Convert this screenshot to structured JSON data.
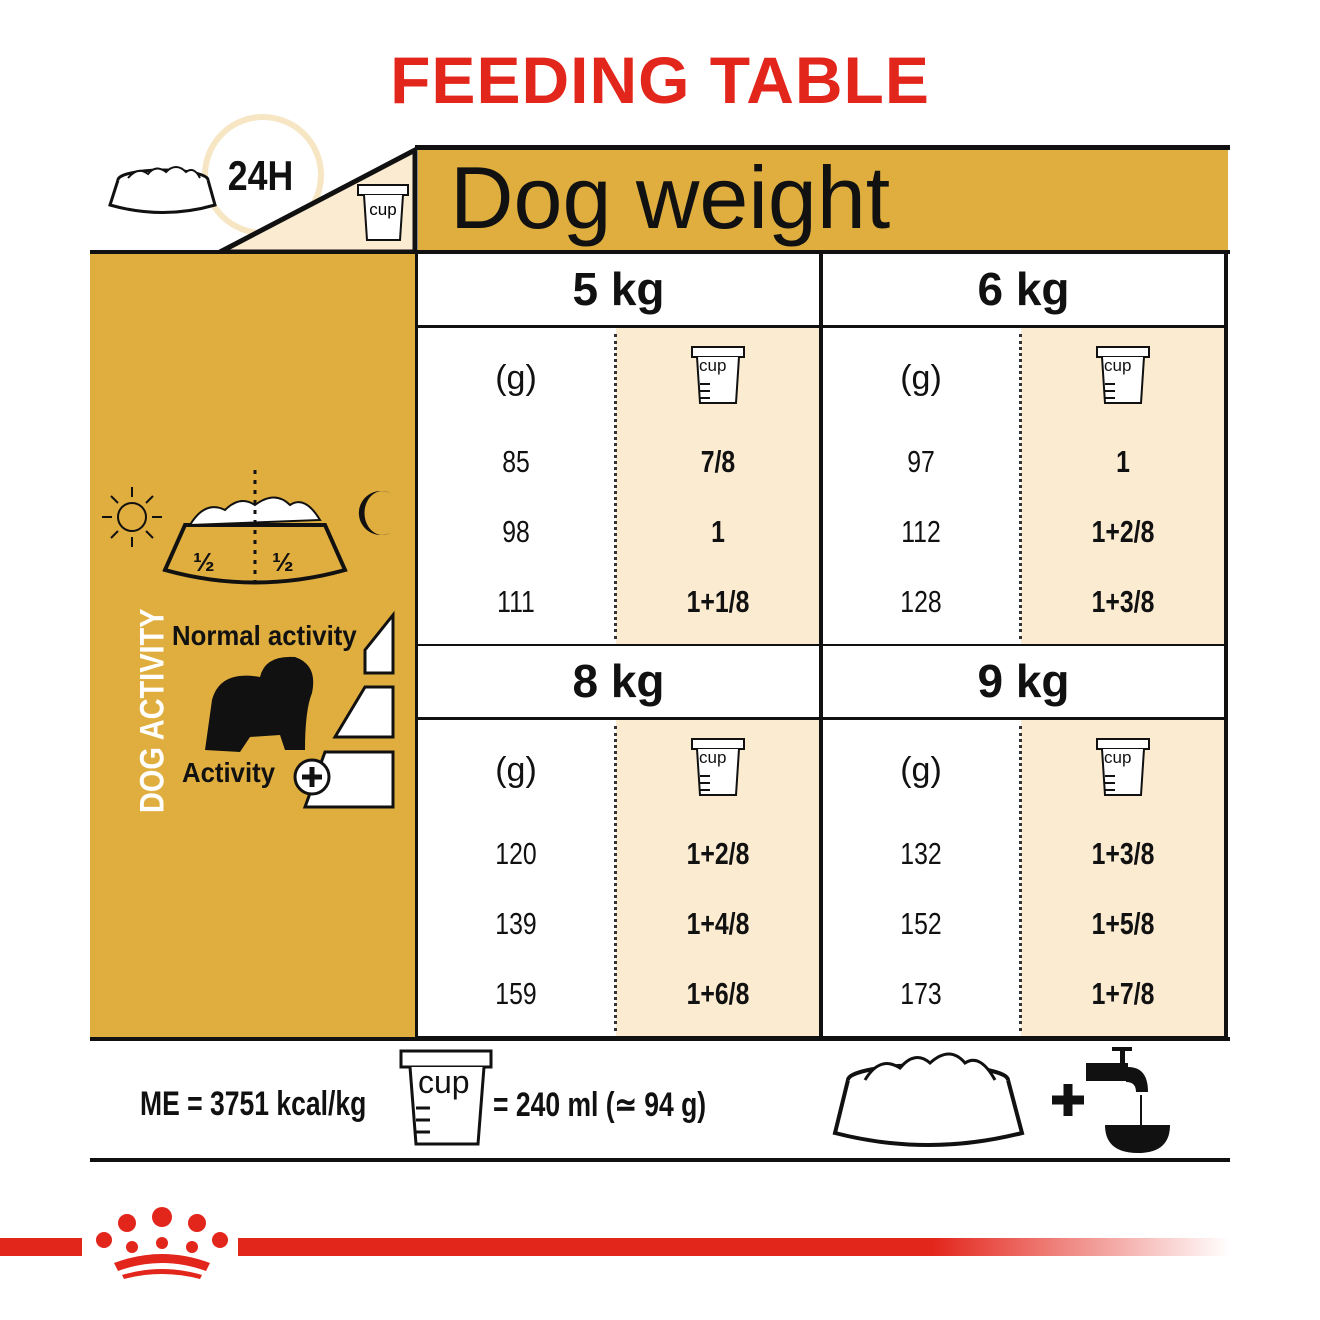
{
  "title": "FEEDING TABLE",
  "header": {
    "period": "24H",
    "dog_weight": "Dog weight",
    "cup_label": "cup"
  },
  "left_panel": {
    "vertical_label": "DOG ACTIVITY",
    "half_left": "½",
    "half_right": "½",
    "normal_activity": "Normal activity",
    "activity_plus": "Activity"
  },
  "columns": {
    "grams_label": "(g)",
    "cup_label": "cup"
  },
  "table": [
    {
      "weight": "5 kg",
      "rows": [
        [
          "85",
          "7/8"
        ],
        [
          "98",
          "1"
        ],
        [
          "111",
          "1+1/8"
        ]
      ]
    },
    {
      "weight": "6 kg",
      "rows": [
        [
          "97",
          "1"
        ],
        [
          "112",
          "1+2/8"
        ],
        [
          "128",
          "1+3/8"
        ]
      ]
    },
    {
      "weight": "8 kg",
      "rows": [
        [
          "120",
          "1+2/8"
        ],
        [
          "139",
          "1+4/8"
        ],
        [
          "159",
          "1+6/8"
        ]
      ]
    },
    {
      "weight": "9 kg",
      "rows": [
        [
          "132",
          "1+3/8"
        ],
        [
          "152",
          "1+5/8"
        ],
        [
          "173",
          "1+7/8"
        ]
      ]
    }
  ],
  "footer": {
    "energy": "ME = 3751 kcal/kg",
    "cup_label": "cup",
    "cup_equiv": "= 240 ml (≃ 94 g)"
  },
  "colors": {
    "accent_red": "#e3261c",
    "gold": "#e0ae3e",
    "cream": "#fbebd0"
  },
  "icons": [
    "food-bowl-icon",
    "clock-icon",
    "measuring-cup-icon",
    "sun-icon",
    "moon-icon",
    "dog-silhouette-icon",
    "plus-icon",
    "water-tap-icon",
    "crown-logo-icon"
  ]
}
